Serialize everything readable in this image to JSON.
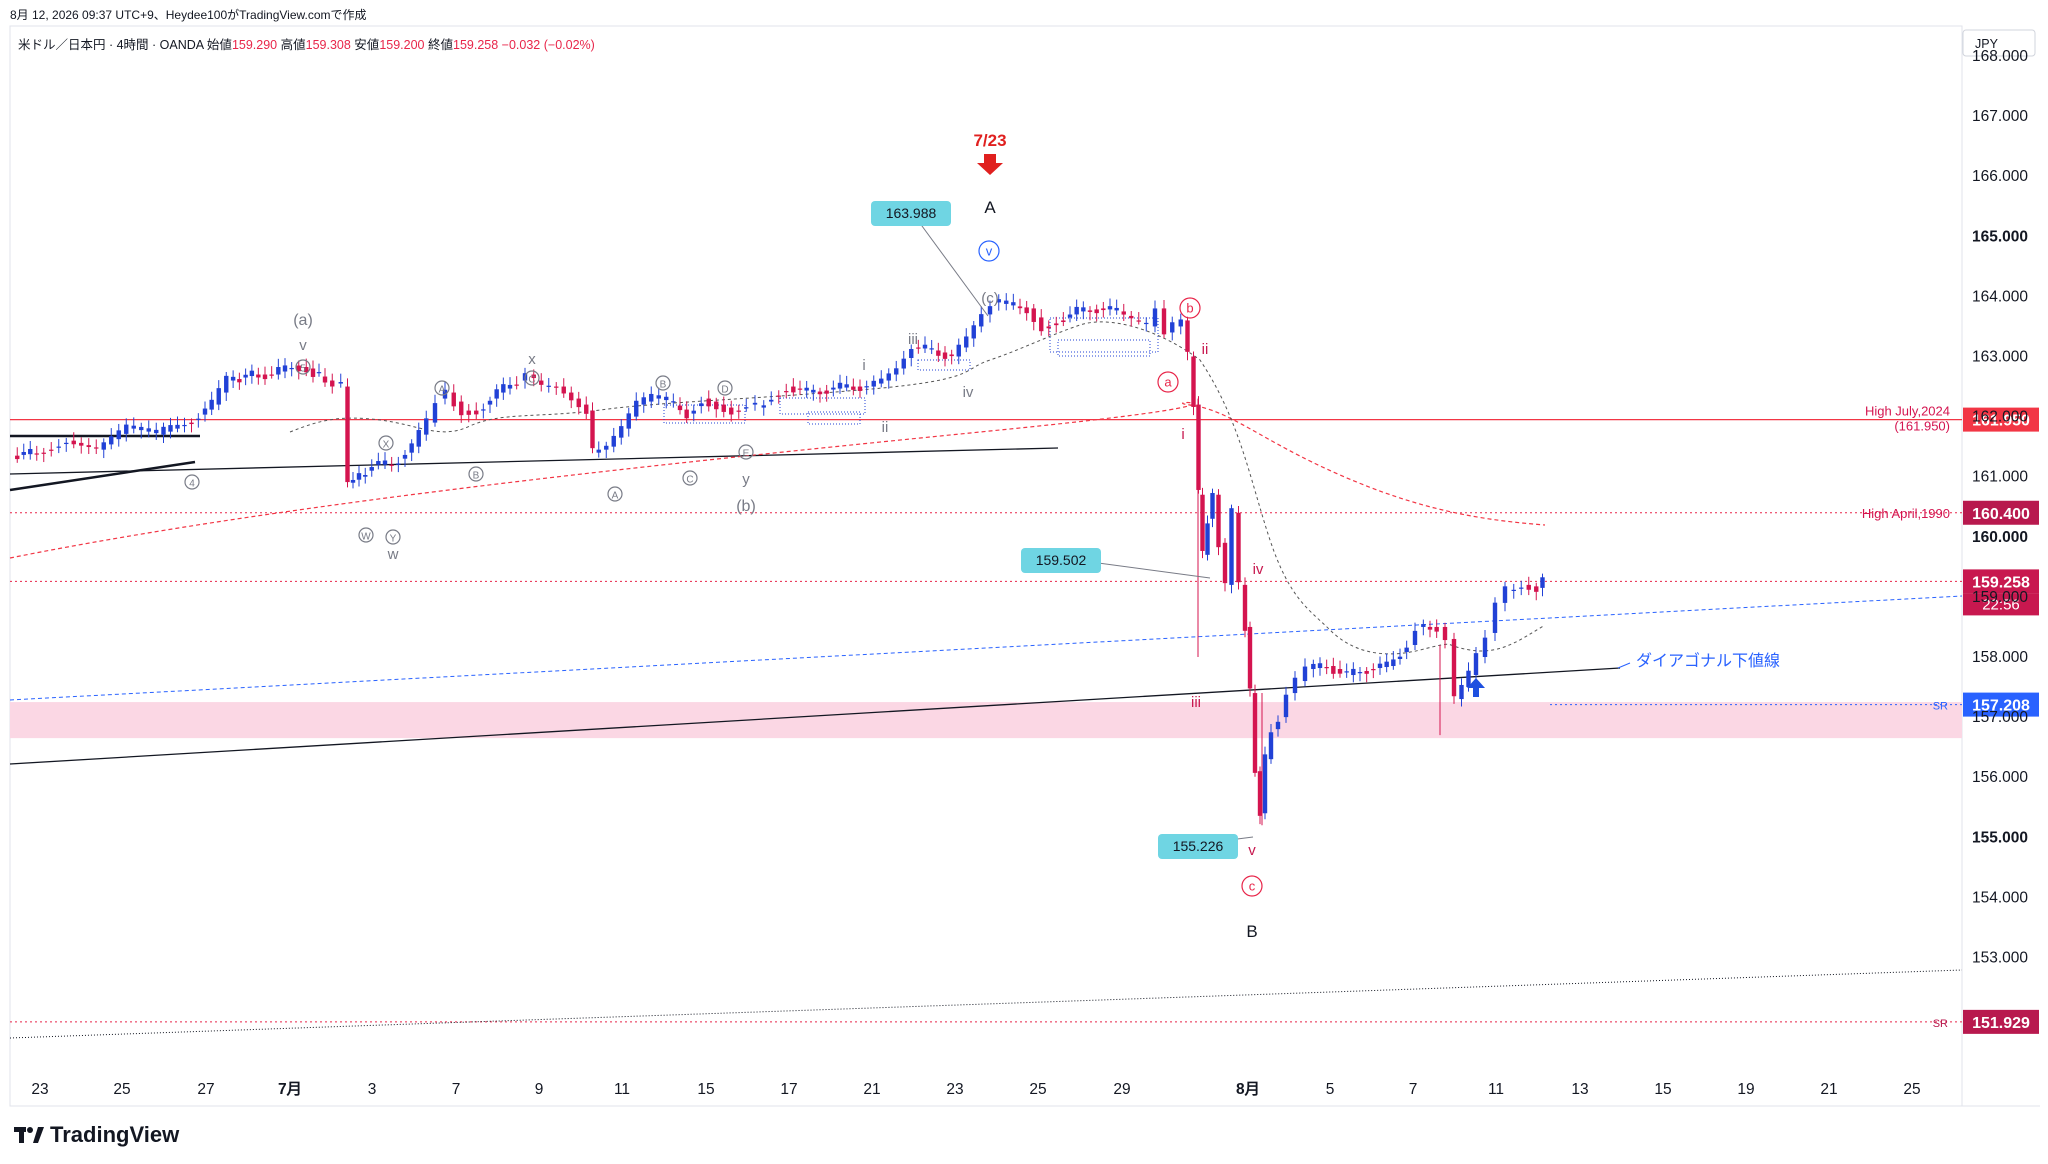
{
  "header": {
    "caption": "8月 12, 2026 09:37 UTC+9、Heydee100がTradingView.comで作成"
  },
  "symbol_bar": {
    "name": "米ドル／日本円 · 4時間 · OANDA",
    "open_label": "始値",
    "open_value": "159.290",
    "high_label": "高値",
    "high_value": "159.308",
    "low_label": "安値",
    "low_value": "159.200",
    "close_label": "終値",
    "close_value": "159.258",
    "change": "−0.032 (−0.02%)"
  },
  "currency": "JPY",
  "brand": "TradingView",
  "colors": {
    "up": "#2141d6",
    "down": "#d4144f",
    "red_line": "#f23645",
    "zone": "#fbd7e4",
    "label_box": "#6fd5e3"
  },
  "chart_data": {
    "type": "candlestick",
    "timeframe": "4時間",
    "ylim": [
      151.4,
      168.6
    ],
    "y_ticks": [
      "168.000",
      "167.000",
      "166.000",
      "165.000",
      "164.000",
      "163.000",
      "162.000",
      "161.000",
      "160.000",
      "159.000",
      "158.000",
      "157.000",
      "156.000",
      "155.000",
      "154.000",
      "153.000"
    ],
    "x_ticks": [
      "23",
      "25",
      "27",
      "7月",
      "3",
      "7",
      "9",
      "11",
      "15",
      "17",
      "21",
      "23",
      "25",
      "29",
      "8月",
      "5",
      "7",
      "11",
      "13",
      "15",
      "19",
      "21",
      "25"
    ],
    "last_price": "159.258",
    "countdown": "22:56",
    "price_tags": [
      {
        "text": "161.950",
        "value": 161.95,
        "color": "#f23645"
      },
      {
        "text": "160.400",
        "value": 160.4,
        "color": "#b8194e"
      },
      {
        "text": "157.208",
        "value": 157.208,
        "color": "#2962ff",
        "prefix": "SR"
      },
      {
        "text": "151.929",
        "value": 151.929,
        "color": "#b8194e",
        "prefix": "SR"
      }
    ],
    "levels": [
      {
        "label": "High July,2024",
        "sublabel": "(161.950)",
        "value": 161.95
      },
      {
        "label": "High April,1990",
        "value": 160.4
      }
    ],
    "diagonal_label": "ダイアゴナル下値線",
    "support_zone": [
      156.65,
      157.25
    ],
    "callouts": [
      {
        "text": "163.988",
        "value": 163.988
      },
      {
        "text": "159.502",
        "value": 159.502
      },
      {
        "text": "155.226",
        "value": 155.226
      }
    ],
    "event_marker": "7/23",
    "wave_labels": {
      "A": "A",
      "B": "B",
      "v_circ": "v",
      "c_paren": "(c)",
      "b_circ": "b",
      "a_circ": "a",
      "c_circ": "c",
      "ii": "ii",
      "i": "i",
      "iii": "iii",
      "iv": "iv",
      "v": "v",
      "g_i": "i",
      "g_ii": "ii",
      "g_iii": "iii",
      "g_iv": "iv",
      "pa": "(a)",
      "pb": "(b)",
      "gv": "v",
      "c5": "5",
      "c4": "4",
      "x1": "x",
      "y1": "y",
      "w1": "w",
      "cA1": "A",
      "cB1": "B",
      "cC1": "C",
      "cD1": "D",
      "cE1": "E",
      "cA2": "A",
      "cC2": "C",
      "cB2": "B",
      "cX": "X",
      "cW": "W",
      "cY": "Y"
    }
  }
}
